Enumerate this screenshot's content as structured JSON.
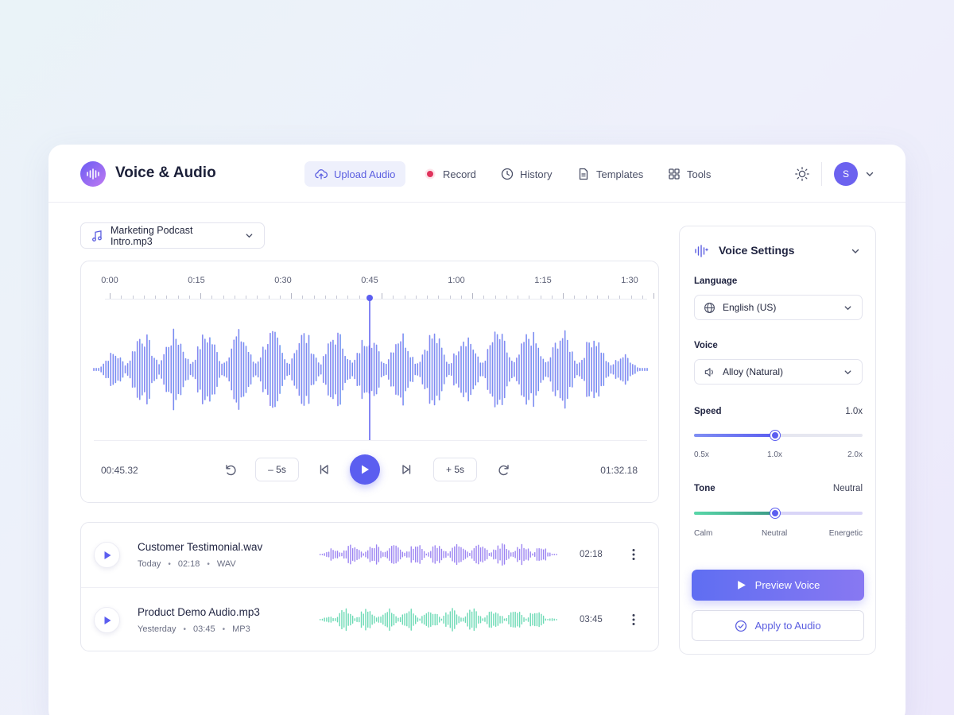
{
  "app": {
    "title": "Voice & Audio",
    "user_initial": "S"
  },
  "nav": {
    "upload": "Upload Audio",
    "record": "Record",
    "history": "History",
    "templates": "Templates",
    "tools": "Tools"
  },
  "file_selector": {
    "value": "Marketing Podcast Intro.mp3"
  },
  "player": {
    "timeline_ticks": [
      "0:00",
      "0:15",
      "0:30",
      "0:45",
      "1:00",
      "1:15",
      "1:30"
    ],
    "current_time": "00:45.32",
    "total_time": "01:32.18",
    "back_label": "– 5s",
    "forward_label": "+ 5s",
    "playhead_position_seconds": 45
  },
  "recent_files": [
    {
      "name": "Customer Testimonial.wav",
      "date": "Today",
      "time": "02:18",
      "format": "WAV",
      "duration": "02:18",
      "wave_color": "#8b6ff0"
    },
    {
      "name": "Product Demo Audio.mp3",
      "date": "Yesterday",
      "time": "03:45",
      "format": "MP3",
      "duration": "03:45",
      "wave_color": "#52d3a8"
    }
  ],
  "voice_settings": {
    "title": "Voice Settings",
    "language_label": "Language",
    "language_value": "English (US)",
    "voice_label": "Voice",
    "voice_value": "Alloy (Natural)",
    "speed_label": "Speed",
    "speed_value": "1.0x",
    "speed_min": "0.5x",
    "speed_mid": "1.0x",
    "speed_max": "2.0x",
    "speed_level": 0.48,
    "tone_label": "Tone",
    "tone_value": "Neutral",
    "tone_min": "Calm",
    "tone_mid": "Neutral",
    "tone_max": "Energetic",
    "tone_level": 0.48,
    "preview_button": "Preview Voice",
    "apply_button": "Apply to Audio"
  },
  "colors": {
    "accent": "#5b5ef0",
    "wave_start": "#b07cf2",
    "wave_end": "#4d9cf0",
    "record_dot": "#e0335c"
  }
}
